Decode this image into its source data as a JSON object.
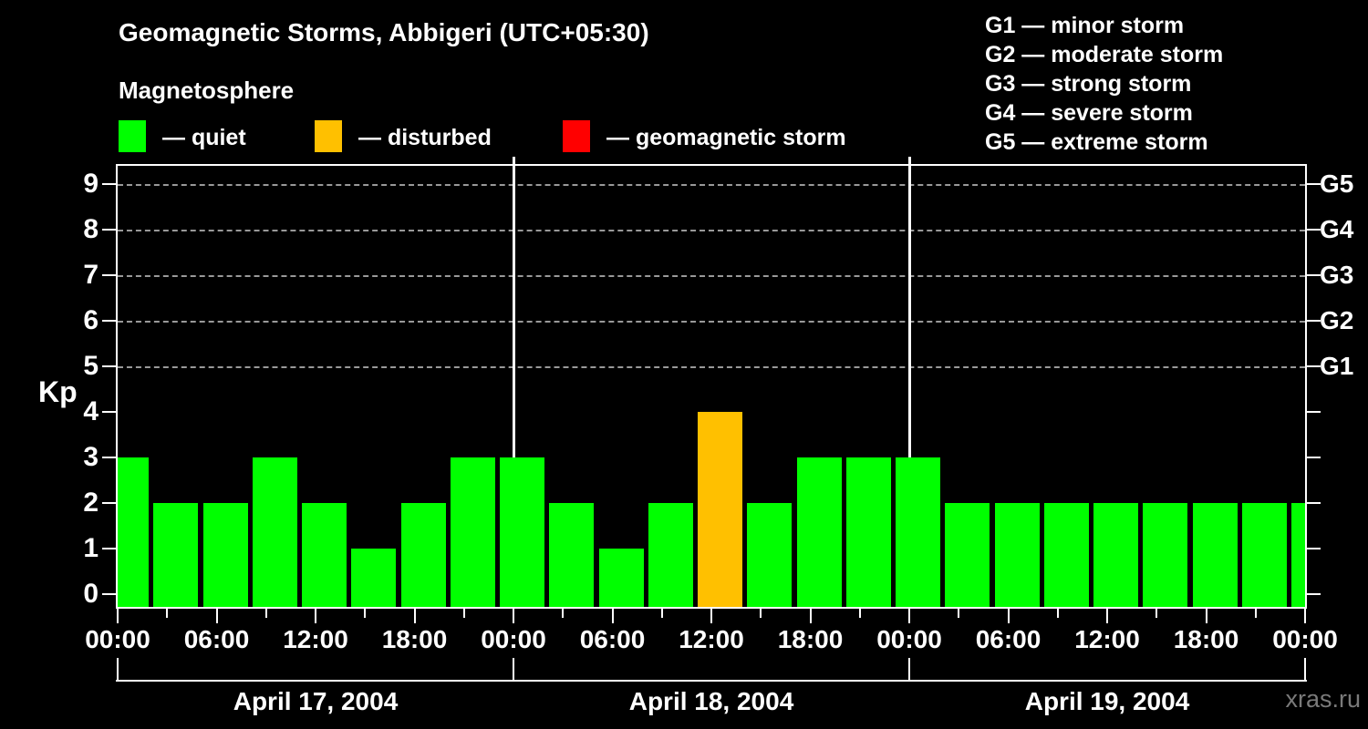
{
  "header": {
    "title": "Geomagnetic Storms, Abbigeri (UTC+05:30)",
    "subtitle": "Magnetosphere"
  },
  "legend": {
    "items": [
      {
        "label": "— quiet",
        "status": "quiet",
        "color": "#00ff00"
      },
      {
        "label": "— disturbed",
        "status": "disturbed",
        "color": "#ffc000"
      },
      {
        "label": "— geomagnetic storm",
        "status": "storm",
        "color": "#ff0000"
      }
    ]
  },
  "g_legend": {
    "items": [
      "G1 — minor storm",
      "G2 — moderate storm",
      "G3 — strong storm",
      "G4 — severe storm",
      "G5 — extreme storm"
    ]
  },
  "axes": {
    "ylabel": "Kp",
    "y_ticks": [
      "0",
      "1",
      "2",
      "3",
      "4",
      "5",
      "6",
      "7",
      "8",
      "9"
    ],
    "x_tick_labels": [
      "00:00",
      "06:00",
      "12:00",
      "18:00",
      "00:00",
      "06:00",
      "12:00",
      "18:00",
      "00:00",
      "06:00",
      "12:00",
      "18:00",
      "00:00"
    ],
    "right_labels": [
      {
        "label": "G5",
        "kp": 9
      },
      {
        "label": "G4",
        "kp": 8
      },
      {
        "label": "G3",
        "kp": 7
      },
      {
        "label": "G2",
        "kp": 6
      },
      {
        "label": "G1",
        "kp": 5
      }
    ]
  },
  "watermark": "xras.ru",
  "chart_data": {
    "type": "bar",
    "title": "Geomagnetic Storms, Abbigeri (UTC+05:30)",
    "ylabel": "Kp",
    "ylim": [
      -0.3,
      9.4
    ],
    "grid_levels": [
      5,
      6,
      7,
      8,
      9
    ],
    "bar_interval_hours": 3,
    "days": [
      {
        "date": "April 17, 2004",
        "values": [
          3,
          2,
          2,
          3,
          2,
          1,
          2,
          3
        ]
      },
      {
        "date": "April 18, 2004",
        "values": [
          3,
          2,
          1,
          2,
          4,
          2,
          3,
          3
        ]
      },
      {
        "date": "April 19, 2004",
        "values": [
          3,
          2,
          2,
          2,
          2,
          2,
          2,
          2
        ]
      }
    ],
    "trailing_bar_value": 2,
    "color_rule": {
      "quiet_max_kp": 3,
      "disturbed_kp": 4,
      "storm_min_kp": 5
    },
    "colors": {
      "quiet": "#00ff00",
      "disturbed": "#ffc000",
      "storm": "#ff0000"
    },
    "legend_position": "top-left",
    "grid": "dashed horizontal at G-levels only"
  }
}
